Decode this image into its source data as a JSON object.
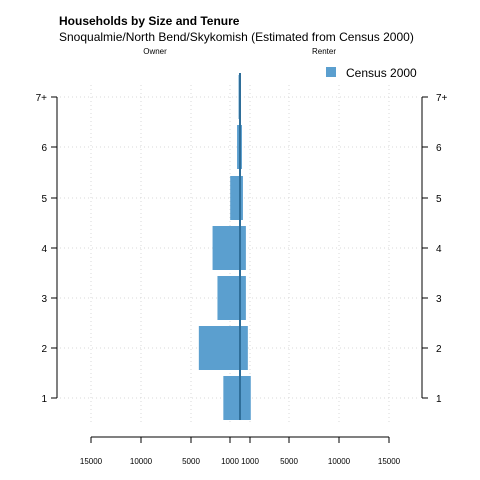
{
  "chart_data": {
    "type": "bar",
    "orientation": "horizontal-population-pyramid",
    "title": "Households by Size and Tenure",
    "subtitle": "Snoqualmie/North Bend/Skykomish (Estimated from Census 2000)",
    "left_label": "Owner",
    "right_label": "Renter",
    "categories": [
      "1",
      "2",
      "3",
      "4",
      "5",
      "6",
      "7+"
    ],
    "xlim": [
      -15000,
      15000
    ],
    "x_tick_labels": [
      "15000",
      "10000",
      "5000",
      "1000",
      "1000",
      "5000",
      "10000",
      "15000"
    ],
    "series": [
      {
        "name": "Census 2000",
        "color": "#5b9fcf",
        "owner": [
          1700,
          4200,
          2300,
          2800,
          1000,
          300,
          150
        ],
        "renter": [
          1100,
          800,
          600,
          600,
          300,
          200,
          100
        ]
      }
    ],
    "legend_position": "top-right",
    "grid": true
  }
}
